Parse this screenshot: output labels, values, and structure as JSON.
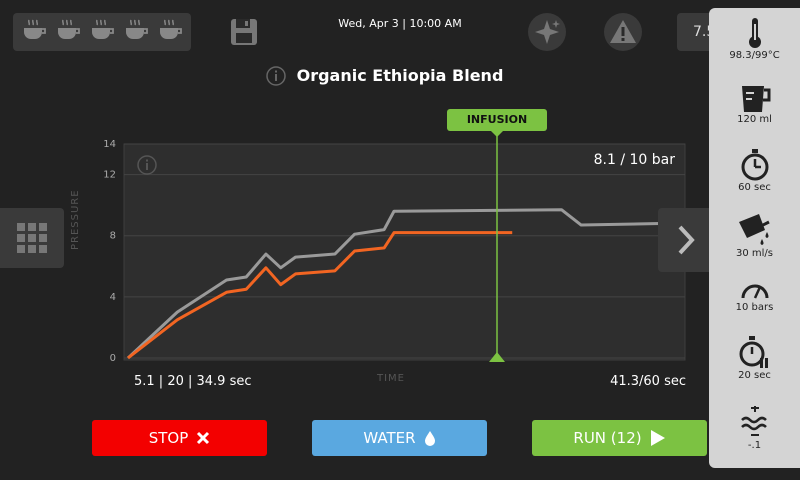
{
  "header": {
    "datetime": "Wed, Apr 3  |  10:00 AM",
    "right_cut_text": "7.5",
    "cup_count": 5
  },
  "title": "Organic Ethiopia Blend",
  "chart_data": {
    "type": "line",
    "ylabel": "PRESSURE",
    "xlabel": "TIME",
    "ylim": [
      0,
      14
    ],
    "yticks": [
      "0",
      "4",
      "8",
      "12",
      "14"
    ],
    "grid": true,
    "series": [
      {
        "color": "#9a9a9a",
        "points": [
          [
            0,
            0
          ],
          [
            5,
            3
          ],
          [
            10,
            5.1
          ],
          [
            12,
            5.3
          ],
          [
            14,
            6.8
          ],
          [
            15.5,
            5.9
          ],
          [
            17,
            6.6
          ],
          [
            21,
            6.8
          ],
          [
            23,
            8.1
          ],
          [
            26,
            8.4
          ],
          [
            27,
            9.6
          ],
          [
            44,
            9.7
          ],
          [
            46,
            8.7
          ],
          [
            54,
            8.8
          ]
        ]
      },
      {
        "color": "#f26522",
        "points": [
          [
            0,
            0
          ],
          [
            5,
            2.5
          ],
          [
            10,
            4.3
          ],
          [
            12,
            4.5
          ],
          [
            14,
            5.9
          ],
          [
            15.5,
            4.8
          ],
          [
            17,
            5.5
          ],
          [
            21,
            5.7
          ],
          [
            23,
            7.0
          ],
          [
            26,
            7.2
          ],
          [
            27,
            8.2
          ],
          [
            39,
            8.2
          ]
        ]
      }
    ],
    "xmax": 54
  },
  "readout": {
    "bar": "8.1 / 10 bar",
    "stats": "5.1  |  20  |  34.9 sec",
    "timer": "41.3/60 sec",
    "infusion": "INFUSION"
  },
  "buttons": {
    "stop": "STOP",
    "water": "WATER",
    "run": "RUN (12)"
  },
  "panel": {
    "temperature": "98.3/99°C",
    "volume": "120 ml",
    "time": "60 sec",
    "flow": "30 ml/s",
    "pressure": "10 bars",
    "pause": "20 sec",
    "adjust": "-.1"
  },
  "colors": {
    "stop": "#f30000",
    "water": "#5aa8e0",
    "run": "#7cc242",
    "orange_series": "#f26522",
    "gray_series": "#9a9a9a"
  }
}
